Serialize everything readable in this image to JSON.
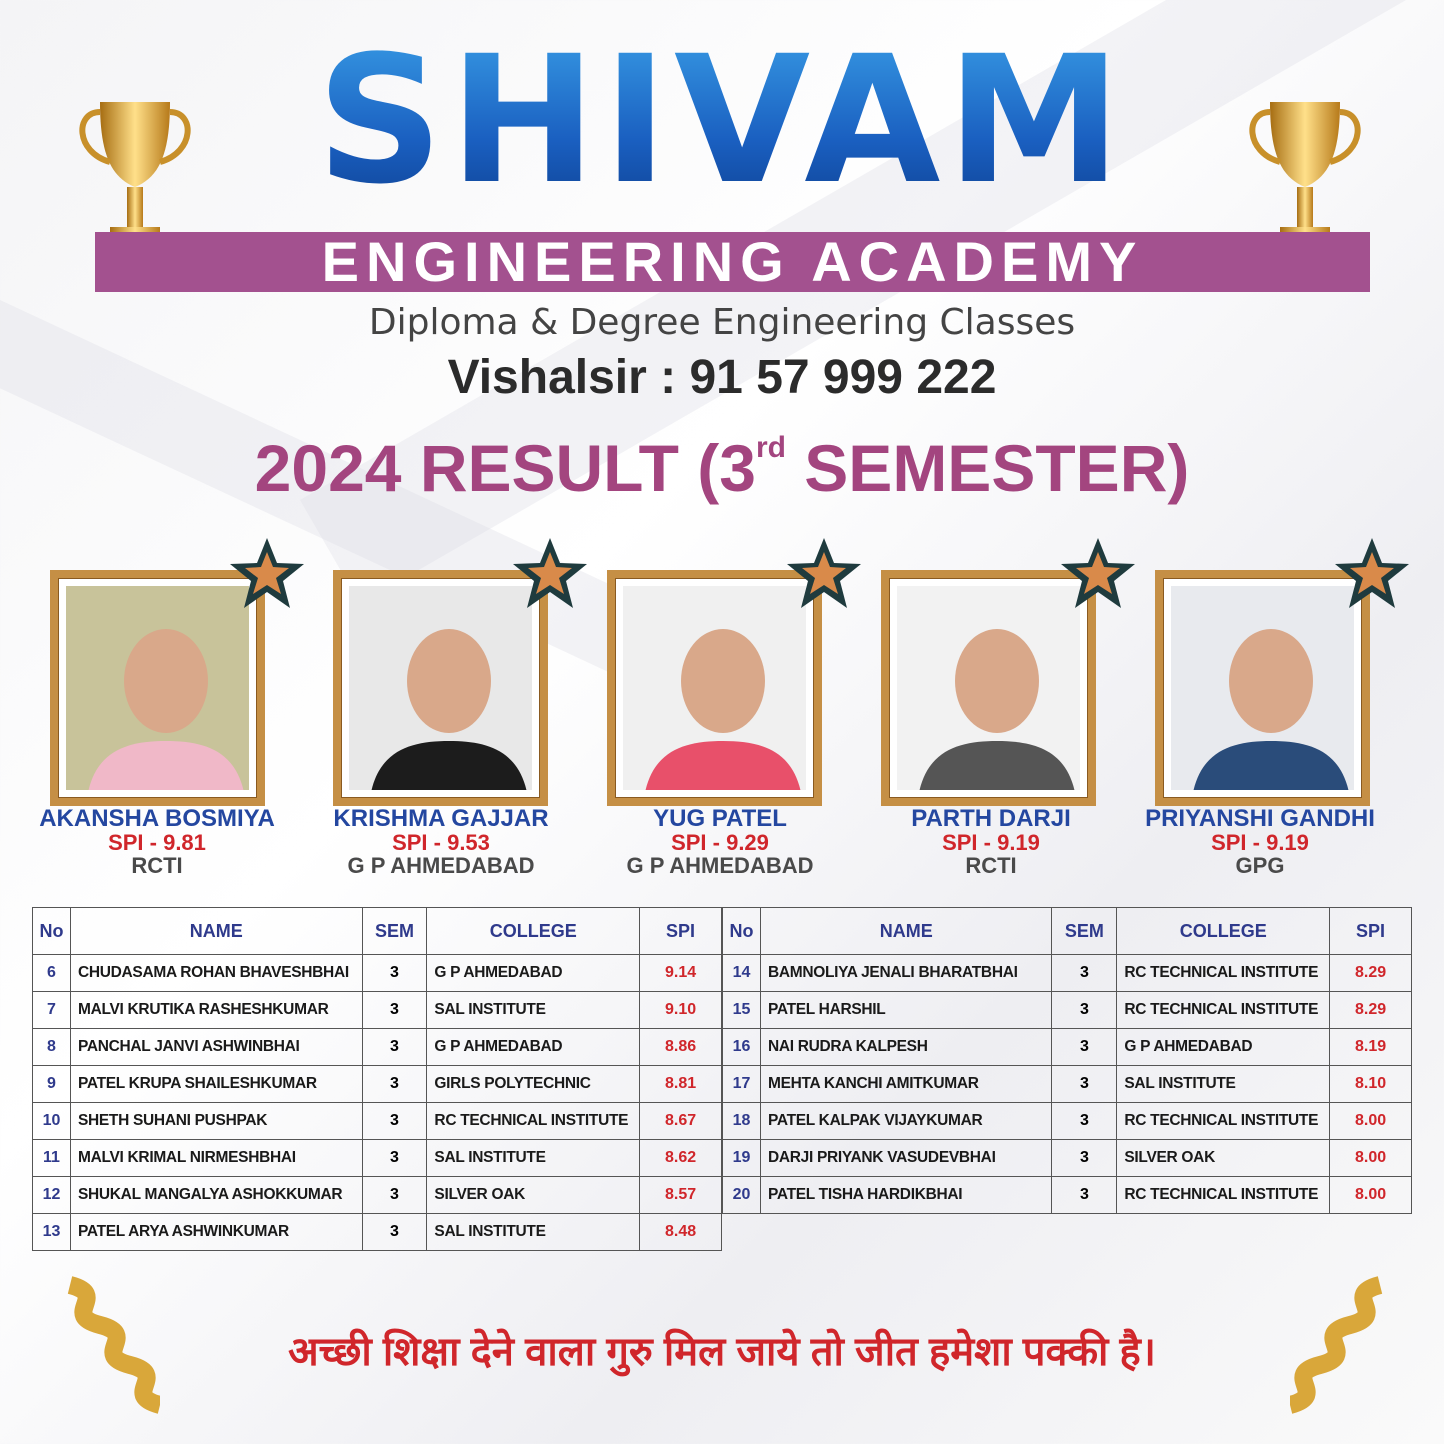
{
  "brand": {
    "logo": "SHIVAM",
    "band": "ENGINEERING ACADEMY",
    "subtitle": "Diploma & Degree Engineering Classes",
    "phone": "Vishalsir : 91 57 999 222"
  },
  "result_title": {
    "prefix": "2024 RESULT (3",
    "sup": "rd",
    "suffix": " SEMESTER)"
  },
  "colors": {
    "brand_blue": "#1a5fc0",
    "band_purple": "#a3518f",
    "title_purple": "#a3457f",
    "spi_red": "#d0262b",
    "name_blue": "#2447a0",
    "gold": "#c58f45"
  },
  "toppers": [
    {
      "name": "AKANSHA BOSMIYA",
      "spi": "SPI - 9.81",
      "college": "RCTI"
    },
    {
      "name": "KRISHMA GAJJAR",
      "spi": "SPI - 9.53",
      "college": "G P AHMEDABAD"
    },
    {
      "name": "YUG PATEL",
      "spi": "SPI - 9.29",
      "college": "G P AHMEDABAD"
    },
    {
      "name": "PARTH DARJI",
      "spi": "SPI - 9.19",
      "college": "RCTI"
    },
    {
      "name": "PRIYANSHI GANDHI",
      "spi": "SPI - 9.19",
      "college": "GPG"
    }
  ],
  "table": {
    "headers": [
      "No",
      "NAME",
      "SEM",
      "COLLEGE",
      "SPI"
    ],
    "left": [
      [
        "6",
        "CHUDASAMA ROHAN BHAVESHBHAI",
        "3",
        "G P AHMEDABAD",
        "9.14"
      ],
      [
        "7",
        "MALVI KRUTIKA RASHESHKUMAR",
        "3",
        "SAL INSTITUTE",
        "9.10"
      ],
      [
        "8",
        "PANCHAL JANVI ASHWINBHAI",
        "3",
        "G P AHMEDABAD",
        "8.86"
      ],
      [
        "9",
        "PATEL KRUPA SHAILESHKUMAR",
        "3",
        "GIRLS POLYTECHNIC",
        "8.81"
      ],
      [
        "10",
        "SHETH SUHANI PUSHPAK",
        "3",
        "RC TECHNICAL INSTITUTE",
        "8.67"
      ],
      [
        "11",
        "MALVI KRIMAL NIRMESHBHAI",
        "3",
        "SAL INSTITUTE",
        "8.62"
      ],
      [
        "12",
        "SHUKAL MANGALYA ASHOKKUMAR",
        "3",
        "SILVER OAK",
        "8.57"
      ],
      [
        "13",
        "PATEL ARYA ASHWINKUMAR",
        "3",
        "SAL INSTITUTE",
        "8.48"
      ]
    ],
    "right": [
      [
        "14",
        "BAMNOLIYA JENALI BHARATBHAI",
        "3",
        "RC TECHNICAL INSTITUTE",
        "8.29"
      ],
      [
        "15",
        "PATEL HARSHIL",
        "3",
        "RC TECHNICAL INSTITUTE",
        "8.29"
      ],
      [
        "16",
        "NAI RUDRA KALPESH",
        "3",
        "G P AHMEDABAD",
        "8.19"
      ],
      [
        "17",
        "MEHTA KANCHI AMITKUMAR",
        "3",
        "SAL INSTITUTE",
        "8.10"
      ],
      [
        "18",
        "PATEL KALPAK VIJAYKUMAR",
        "3",
        "RC TECHNICAL INSTITUTE",
        "8.00"
      ],
      [
        "19",
        "DARJI PRIYANK VASUDEVBHAI",
        "3",
        "SILVER OAK",
        "8.00"
      ],
      [
        "20",
        "PATEL TISHA HARDIKBHAI",
        "3",
        "RC TECHNICAL INSTITUTE",
        "8.00"
      ]
    ]
  },
  "quote": "अच्छी शिक्षा देने वाला गुरु मिल जाये तो जीत हमेशा पक्की है।",
  "icons": [
    "trophy-icon",
    "star-badge-icon",
    "ribbon-icon"
  ]
}
